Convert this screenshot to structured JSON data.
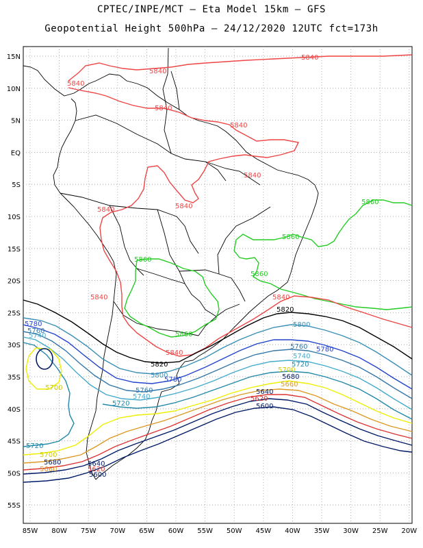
{
  "title_line1": "CPTEC/INPE/MCT –  Eta Model 15km – GFS",
  "title_line2": "Geopotential Height 500hPa – 24/12/2020 12UTC fct=173h",
  "lat_labels": [
    "15N",
    "10N",
    "5N",
    "EQ",
    "5S",
    "10S",
    "15S",
    "20S",
    "25S",
    "30S",
    "35S",
    "40S",
    "45S",
    "50S",
    "55S"
  ],
  "lon_labels": [
    "85W",
    "80W",
    "75W",
    "70W",
    "65W",
    "60W",
    "55W",
    "50W",
    "45W",
    "40W",
    "35W",
    "30W",
    "25W",
    "20W"
  ],
  "colors": {
    "c5860": "#22cc22",
    "c5840": "#ee4444",
    "c5820": "#000000",
    "c5800": "#3a8fb7",
    "c5780": "#2244cc",
    "c5760": "#3377aa",
    "c5740": "#44aacc",
    "c5720": "#2288aa",
    "c5700": "#eeee00",
    "c5680": "#dd9922",
    "c5660": "#dd3333",
    "c5640": "#001a66",
    "c5600": "#001a66"
  },
  "contours": {
    "l5860": "5860",
    "l5840": "5840",
    "l5820": "5820",
    "l5800": "5800",
    "l5780": "5780",
    "l5760": "5760",
    "l5740": "5740",
    "l5720": "5720",
    "l5700": "5700",
    "l5680": "5680",
    "l5660": "5660",
    "l5640": "5640",
    "l5620": "5620",
    "l5600": "5600"
  }
}
